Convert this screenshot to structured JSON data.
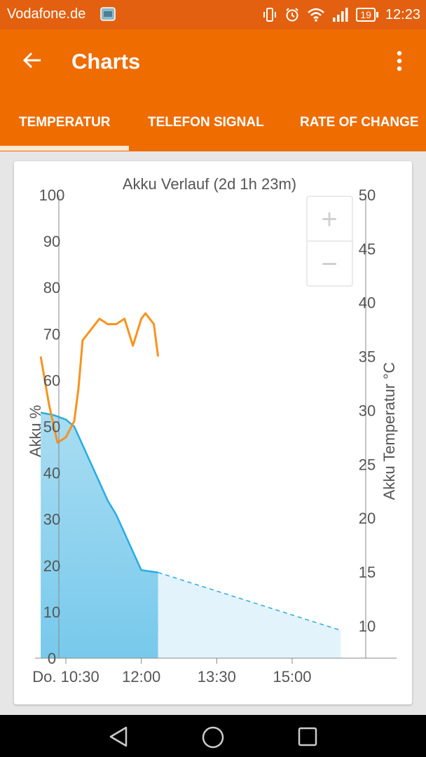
{
  "status_bar": {
    "carrier": "Vodafone.de",
    "battery_level": "19",
    "time": "12:23"
  },
  "app_bar": {
    "title": "Charts",
    "back_icon": "arrow-left-icon",
    "menu_icon": "more-vert-icon"
  },
  "tabs": [
    {
      "label": "TEMPERATUR",
      "selected": true
    },
    {
      "label": "TELEFON SIGNAL",
      "selected": false
    },
    {
      "label": "RATE OF CHANGE",
      "selected": false
    }
  ],
  "colors": {
    "primary": "#ef6c00",
    "status_bar": "#e2600f",
    "battery_series": "#29abe2",
    "temperature_series": "#f7931e"
  },
  "zoom_controls": {
    "zoom_in": "+",
    "zoom_out": "−"
  },
  "chart_data": {
    "type": "line",
    "title": "Akku Verlauf (2d 1h 23m)",
    "x_ticks": [
      "Do. 10:30",
      "12:00",
      "13:30",
      "15:00"
    ],
    "y_left": {
      "label": "Akku %",
      "ticks": [
        0,
        10,
        20,
        30,
        40,
        50,
        60,
        70,
        80,
        90,
        100
      ],
      "range": [
        0,
        100
      ]
    },
    "y_right": {
      "label": "Akku Temperatur °C",
      "ticks": [
        10,
        15,
        20,
        25,
        30,
        35,
        40,
        45,
        50
      ],
      "range": [
        7,
        50
      ]
    },
    "series": [
      {
        "axis": "left",
        "style": "area",
        "points": [
          [
            "10:00",
            53
          ],
          [
            "10:15",
            52.5
          ],
          [
            "10:30",
            51.5
          ],
          [
            "10:40",
            50
          ],
          [
            "10:50",
            46
          ],
          [
            "11:00",
            42
          ],
          [
            "11:10",
            38
          ],
          [
            "11:20",
            34
          ],
          [
            "11:30",
            31
          ],
          [
            "11:40",
            27
          ],
          [
            "11:50",
            23
          ],
          [
            "12:00",
            19
          ],
          [
            "12:20",
            18.5
          ]
        ]
      },
      {
        "axis": "left",
        "style": "dashed-projection",
        "points": [
          [
            "12:20",
            18.5
          ],
          [
            "15:58",
            6
          ]
        ]
      },
      {
        "axis": "right",
        "style": "line",
        "points": [
          [
            "10:00",
            35
          ],
          [
            "10:10",
            30.5
          ],
          [
            "10:20",
            27
          ],
          [
            "10:30",
            27.5
          ],
          [
            "10:40",
            29
          ],
          [
            "10:45",
            32
          ],
          [
            "10:50",
            36.5
          ],
          [
            "11:00",
            37.5
          ],
          [
            "11:10",
            38.5
          ],
          [
            "11:20",
            38
          ],
          [
            "11:30",
            38
          ],
          [
            "11:40",
            38.5
          ],
          [
            "11:50",
            36
          ],
          [
            "12:00",
            38.5
          ],
          [
            "12:05",
            39
          ],
          [
            "12:15",
            38
          ],
          [
            "12:20",
            35
          ]
        ]
      }
    ]
  }
}
